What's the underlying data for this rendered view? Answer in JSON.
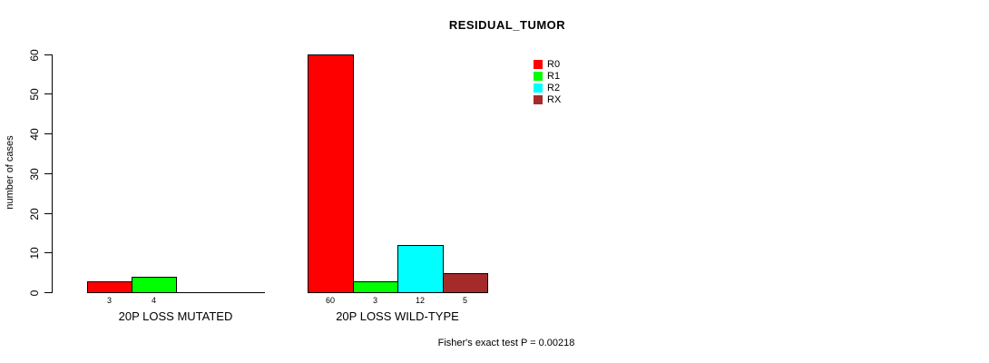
{
  "chart_data": {
    "type": "bar",
    "title": "RESIDUAL_TUMOR",
    "xlabel": "",
    "ylabel": "number of cases",
    "ylim": [
      0,
      60
    ],
    "yticks": [
      0,
      10,
      20,
      30,
      40,
      50,
      60
    ],
    "grid": false,
    "legend_position": "top-right-inside",
    "categories": [
      "20P LOSS MUTATED",
      "20P LOSS WILD-TYPE"
    ],
    "series": [
      {
        "name": "R0",
        "color": "#ff0000",
        "values": [
          3,
          60
        ]
      },
      {
        "name": "R1",
        "color": "#00ff00",
        "values": [
          4,
          3
        ]
      },
      {
        "name": "R2",
        "color": "#00ffff",
        "values": [
          0,
          12
        ]
      },
      {
        "name": "RX",
        "color": "#a52a2a",
        "values": [
          0,
          5
        ]
      }
    ],
    "bar_value_labels": {
      "20P LOSS MUTATED": [
        "3",
        "4"
      ],
      "20P LOSS WILD-TYPE": [
        "60",
        "3",
        "12",
        "5"
      ]
    },
    "annotation": "Fisher's exact test P = 0.00218"
  },
  "colors": {
    "background": "#ffffff",
    "axis": "#000000",
    "text": "#000000"
  }
}
